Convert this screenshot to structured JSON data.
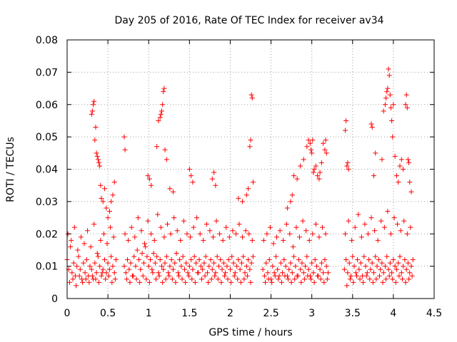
{
  "chart_data": {
    "type": "scatter",
    "title": "Day 205 of 2016, Rate Of TEC Index for receiver av34",
    "xlabel": "GPS time / hours",
    "ylabel": "ROTI / TECUs",
    "xlim": [
      0,
      4.5
    ],
    "ylim": [
      0,
      0.08
    ],
    "xticks": [
      0,
      0.5,
      1,
      1.5,
      2,
      2.5,
      3,
      3.5,
      4,
      4.5
    ],
    "xtick_labels": [
      "0",
      "0.5",
      "1",
      "1.5",
      "2",
      "2.5",
      "3",
      "3.5",
      "4",
      "4.5"
    ],
    "yticks": [
      0,
      0.01,
      0.02,
      0.03,
      0.04,
      0.05,
      0.06,
      0.07,
      0.08
    ],
    "ytick_labels": [
      "0",
      "0.01",
      "0.02",
      "0.03",
      "0.04",
      "0.05",
      "0.06",
      "0.07",
      "0.08"
    ],
    "grid": true,
    "marker": "+",
    "color": "#ff0000",
    "series": [
      {
        "name": "av34",
        "x": [
          0.0,
          0.02,
          0.04,
          0.06,
          0.08,
          0.1,
          0.12,
          0.14,
          0.16,
          0.18,
          0.2,
          0.22,
          0.24,
          0.26,
          0.28,
          0.3,
          0.32,
          0.34,
          0.36,
          0.38,
          0.4,
          0.42,
          0.44,
          0.46,
          0.48,
          0.5,
          0.52,
          0.54,
          0.56,
          0.58,
          0.6,
          0.01,
          0.05,
          0.09,
          0.13,
          0.17,
          0.21,
          0.25,
          0.29,
          0.33,
          0.37,
          0.41,
          0.45,
          0.49,
          0.53,
          0.57,
          0.03,
          0.07,
          0.11,
          0.15,
          0.19,
          0.23,
          0.27,
          0.31,
          0.35,
          0.39,
          0.43,
          0.47,
          0.51,
          0.55,
          0.59,
          0.3,
          0.31,
          0.32,
          0.33,
          0.34,
          0.35,
          0.36,
          0.37,
          0.38,
          0.39,
          0.4,
          0.41,
          0.42,
          0.44,
          0.46,
          0.48,
          0.5,
          0.52,
          0.54,
          0.56,
          0.58,
          0.7,
          0.72,
          0.74,
          0.76,
          0.78,
          0.8,
          0.82,
          0.84,
          0.86,
          0.88,
          0.9,
          0.92,
          0.94,
          0.96,
          0.98,
          1.0,
          1.02,
          1.04,
          1.06,
          1.08,
          1.1,
          1.12,
          1.14,
          1.16,
          1.18,
          1.2,
          1.22,
          1.24,
          1.26,
          1.28,
          1.3,
          1.32,
          1.34,
          1.36,
          1.38,
          1.4,
          1.42,
          1.44,
          1.46,
          1.48,
          1.5,
          1.52,
          1.54,
          1.56,
          1.58,
          1.6,
          1.62,
          1.64,
          1.66,
          1.68,
          1.7,
          1.72,
          1.74,
          1.76,
          1.78,
          1.8,
          1.82,
          1.84,
          1.86,
          1.88,
          1.9,
          1.92,
          1.94,
          1.96,
          1.98,
          2.0,
          2.02,
          2.04,
          2.06,
          2.08,
          2.1,
          2.12,
          2.14,
          2.16,
          2.18,
          2.2,
          2.22,
          2.24,
          2.26,
          2.28,
          0.71,
          0.75,
          0.79,
          0.83,
          0.87,
          0.91,
          0.95,
          0.99,
          1.03,
          1.07,
          1.11,
          1.15,
          1.19,
          1.23,
          1.27,
          1.31,
          1.35,
          1.39,
          1.43,
          1.47,
          1.51,
          1.55,
          1.59,
          1.63,
          1.67,
          1.71,
          1.75,
          1.79,
          1.83,
          1.87,
          1.91,
          1.95,
          1.99,
          2.03,
          2.07,
          2.11,
          2.15,
          2.19,
          2.23,
          2.27,
          0.73,
          0.77,
          0.81,
          0.85,
          0.89,
          0.93,
          0.97,
          1.01,
          1.05,
          1.09,
          1.13,
          1.17,
          1.21,
          1.25,
          1.29,
          1.33,
          1.37,
          1.41,
          1.45,
          1.49,
          1.53,
          1.57,
          1.61,
          1.65,
          1.69,
          1.73,
          1.77,
          1.81,
          1.85,
          1.89,
          1.93,
          1.97,
          2.01,
          2.05,
          2.09,
          2.13,
          2.17,
          2.21,
          2.25,
          0.7,
          0.71,
          1.1,
          1.12,
          1.14,
          1.15,
          1.16,
          1.17,
          1.18,
          1.19,
          1.2,
          1.22,
          2.24,
          2.25,
          2.26,
          2.27,
          2.28,
          0.99,
          1.01,
          1.03,
          1.26,
          1.3,
          1.5,
          1.52,
          1.54,
          1.78,
          1.8,
          1.82,
          2.1,
          2.15,
          2.2,
          2.22,
          2.4,
          2.42,
          2.44,
          2.46,
          2.48,
          2.5,
          2.52,
          2.54,
          2.56,
          2.58,
          2.6,
          2.62,
          2.64,
          2.66,
          2.68,
          2.7,
          2.72,
          2.74,
          2.76,
          2.78,
          2.8,
          2.82,
          2.84,
          2.86,
          2.88,
          2.9,
          2.92,
          2.94,
          2.96,
          2.98,
          3.0,
          3.02,
          3.04,
          3.06,
          3.08,
          3.1,
          3.12,
          3.14,
          3.16,
          3.18,
          3.2,
          2.41,
          2.45,
          2.49,
          2.53,
          2.57,
          2.61,
          2.65,
          2.69,
          2.73,
          2.77,
          2.81,
          2.85,
          2.89,
          2.93,
          2.97,
          3.01,
          3.05,
          3.09,
          3.13,
          3.17,
          2.43,
          2.47,
          2.51,
          2.55,
          2.59,
          2.63,
          2.67,
          2.71,
          2.75,
          2.79,
          2.83,
          2.87,
          2.91,
          2.95,
          2.99,
          3.03,
          3.07,
          3.11,
          3.15,
          3.19,
          2.7,
          2.74,
          2.76,
          2.78,
          2.82,
          2.86,
          2.9,
          2.94,
          2.96,
          2.98,
          2.99,
          3.0,
          3.01,
          3.02,
          3.03,
          3.05,
          3.07,
          3.09,
          3.1,
          3.12,
          3.14,
          3.16,
          3.17,
          3.18,
          3.4,
          3.42,
          3.44,
          3.46,
          3.48,
          3.5,
          3.52,
          3.54,
          3.56,
          3.58,
          3.6,
          3.62,
          3.64,
          3.66,
          3.68,
          3.7,
          3.72,
          3.74,
          3.76,
          3.78,
          3.8,
          3.82,
          3.84,
          3.86,
          3.88,
          3.9,
          3.92,
          3.94,
          3.96,
          3.98,
          4.0,
          4.02,
          4.04,
          4.06,
          4.08,
          4.1,
          4.12,
          4.14,
          4.16,
          4.18,
          4.2,
          4.22,
          4.24,
          3.41,
          3.45,
          3.49,
          3.53,
          3.57,
          3.61,
          3.65,
          3.69,
          3.73,
          3.77,
          3.81,
          3.85,
          3.89,
          3.93,
          3.97,
          4.01,
          4.05,
          4.09,
          4.13,
          4.17,
          4.21,
          3.43,
          3.47,
          3.51,
          3.55,
          3.59,
          3.63,
          3.67,
          3.71,
          3.75,
          3.79,
          3.83,
          3.87,
          3.91,
          3.95,
          3.99,
          4.03,
          4.07,
          4.11,
          4.15,
          4.19,
          4.23,
          3.41,
          3.42,
          3.43,
          3.44,
          3.45,
          3.73,
          3.74,
          3.76,
          3.78,
          3.86,
          3.88,
          3.9,
          3.91,
          3.92,
          3.93,
          3.94,
          3.95,
          3.96,
          3.97,
          3.98,
          3.99,
          4.0,
          4.02,
          4.04,
          4.06,
          4.08,
          4.1,
          4.12,
          4.15,
          4.16,
          4.17,
          4.18,
          4.19,
          4.2,
          4.22
        ],
        "y": [
          0.012,
          0.009,
          0.016,
          0.008,
          0.011,
          0.007,
          0.01,
          0.013,
          0.009,
          0.006,
          0.011,
          0.008,
          0.012,
          0.007,
          0.01,
          0.009,
          0.006,
          0.011,
          0.008,
          0.013,
          0.01,
          0.007,
          0.009,
          0.012,
          0.008,
          0.011,
          0.009,
          0.013,
          0.01,
          0.008,
          0.012,
          0.02,
          0.018,
          0.022,
          0.015,
          0.019,
          0.017,
          0.021,
          0.016,
          0.023,
          0.014,
          0.018,
          0.02,
          0.017,
          0.022,
          0.019,
          0.005,
          0.006,
          0.004,
          0.007,
          0.005,
          0.006,
          0.005,
          0.007,
          0.006,
          0.005,
          0.008,
          0.006,
          0.007,
          0.005,
          0.006,
          0.057,
          0.058,
          0.06,
          0.061,
          0.049,
          0.053,
          0.045,
          0.044,
          0.043,
          0.042,
          0.041,
          0.035,
          0.031,
          0.03,
          0.034,
          0.028,
          0.025,
          0.027,
          0.03,
          0.032,
          0.036,
          0.01,
          0.008,
          0.012,
          0.009,
          0.011,
          0.007,
          0.013,
          0.01,
          0.015,
          0.012,
          0.009,
          0.014,
          0.011,
          0.016,
          0.013,
          0.01,
          0.012,
          0.009,
          0.014,
          0.011,
          0.013,
          0.008,
          0.012,
          0.01,
          0.009,
          0.011,
          0.013,
          0.008,
          0.01,
          0.012,
          0.009,
          0.011,
          0.014,
          0.008,
          0.012,
          0.01,
          0.013,
          0.009,
          0.011,
          0.008,
          0.01,
          0.012,
          0.009,
          0.013,
          0.011,
          0.008,
          0.012,
          0.01,
          0.009,
          0.011,
          0.013,
          0.008,
          0.01,
          0.012,
          0.009,
          0.011,
          0.008,
          0.013,
          0.01,
          0.012,
          0.009,
          0.011,
          0.008,
          0.01,
          0.012,
          0.009,
          0.013,
          0.011,
          0.008,
          0.01,
          0.012,
          0.009,
          0.011,
          0.013,
          0.008,
          0.01,
          0.012,
          0.009,
          0.011,
          0.013,
          0.02,
          0.018,
          0.022,
          0.019,
          0.025,
          0.021,
          0.017,
          0.024,
          0.02,
          0.018,
          0.026,
          0.022,
          0.019,
          0.023,
          0.02,
          0.025,
          0.021,
          0.018,
          0.024,
          0.02,
          0.019,
          0.022,
          0.025,
          0.02,
          0.018,
          0.023,
          0.021,
          0.019,
          0.024,
          0.02,
          0.018,
          0.022,
          0.019,
          0.021,
          0.02,
          0.023,
          0.019,
          0.021,
          0.02,
          0.018,
          0.006,
          0.005,
          0.007,
          0.006,
          0.005,
          0.007,
          0.006,
          0.005,
          0.008,
          0.006,
          0.007,
          0.005,
          0.006,
          0.007,
          0.006,
          0.005,
          0.007,
          0.006,
          0.005,
          0.007,
          0.006,
          0.005,
          0.008,
          0.006,
          0.007,
          0.005,
          0.006,
          0.007,
          0.006,
          0.005,
          0.007,
          0.006,
          0.005,
          0.007,
          0.006,
          0.005,
          0.006,
          0.007,
          0.005,
          0.05,
          0.046,
          0.047,
          0.055,
          0.056,
          0.057,
          0.058,
          0.06,
          0.064,
          0.065,
          0.046,
          0.043,
          0.047,
          0.049,
          0.063,
          0.062,
          0.036,
          0.038,
          0.037,
          0.035,
          0.034,
          0.033,
          0.04,
          0.038,
          0.036,
          0.037,
          0.039,
          0.035,
          0.031,
          0.03,
          0.032,
          0.034,
          0.009,
          0.007,
          0.011,
          0.008,
          0.012,
          0.006,
          0.01,
          0.008,
          0.013,
          0.009,
          0.007,
          0.011,
          0.008,
          0.012,
          0.01,
          0.007,
          0.009,
          0.011,
          0.008,
          0.013,
          0.01,
          0.007,
          0.012,
          0.009,
          0.011,
          0.008,
          0.01,
          0.013,
          0.009,
          0.007,
          0.011,
          0.008,
          0.012,
          0.01,
          0.007,
          0.009,
          0.011,
          0.008,
          0.012,
          0.01,
          0.008,
          0.018,
          0.02,
          0.022,
          0.017,
          0.019,
          0.021,
          0.018,
          0.023,
          0.02,
          0.016,
          0.022,
          0.019,
          0.024,
          0.021,
          0.018,
          0.02,
          0.023,
          0.019,
          0.022,
          0.02,
          0.005,
          0.006,
          0.005,
          0.007,
          0.006,
          0.005,
          0.007,
          0.006,
          0.005,
          0.006,
          0.007,
          0.005,
          0.006,
          0.007,
          0.006,
          0.005,
          0.007,
          0.006,
          0.005,
          0.006,
          0.028,
          0.03,
          0.032,
          0.038,
          0.037,
          0.041,
          0.043,
          0.047,
          0.049,
          0.048,
          0.046,
          0.045,
          0.049,
          0.039,
          0.04,
          0.041,
          0.038,
          0.037,
          0.039,
          0.042,
          0.048,
          0.046,
          0.049,
          0.045,
          0.009,
          0.012,
          0.008,
          0.011,
          0.007,
          0.013,
          0.01,
          0.008,
          0.012,
          0.009,
          0.011,
          0.007,
          0.013,
          0.01,
          0.008,
          0.012,
          0.009,
          0.011,
          0.008,
          0.013,
          0.01,
          0.012,
          0.009,
          0.011,
          0.008,
          0.01,
          0.013,
          0.009,
          0.011,
          0.008,
          0.012,
          0.01,
          0.009,
          0.011,
          0.013,
          0.008,
          0.01,
          0.012,
          0.009,
          0.011,
          0.008,
          0.01,
          0.012,
          0.02,
          0.024,
          0.018,
          0.022,
          0.026,
          0.019,
          0.023,
          0.02,
          0.025,
          0.021,
          0.018,
          0.024,
          0.022,
          0.027,
          0.02,
          0.025,
          0.023,
          0.021,
          0.024,
          0.02,
          0.022,
          0.004,
          0.006,
          0.005,
          0.007,
          0.006,
          0.005,
          0.007,
          0.006,
          0.005,
          0.006,
          0.007,
          0.005,
          0.006,
          0.007,
          0.006,
          0.005,
          0.007,
          0.006,
          0.005,
          0.006,
          0.007,
          0.052,
          0.055,
          0.041,
          0.042,
          0.04,
          0.054,
          0.053,
          0.038,
          0.045,
          0.043,
          0.058,
          0.06,
          0.062,
          0.064,
          0.065,
          0.071,
          0.069,
          0.063,
          0.059,
          0.055,
          0.05,
          0.06,
          0.044,
          0.038,
          0.036,
          0.041,
          0.043,
          0.04,
          0.06,
          0.063,
          0.059,
          0.043,
          0.042,
          0.036,
          0.033
        ]
      }
    ]
  }
}
